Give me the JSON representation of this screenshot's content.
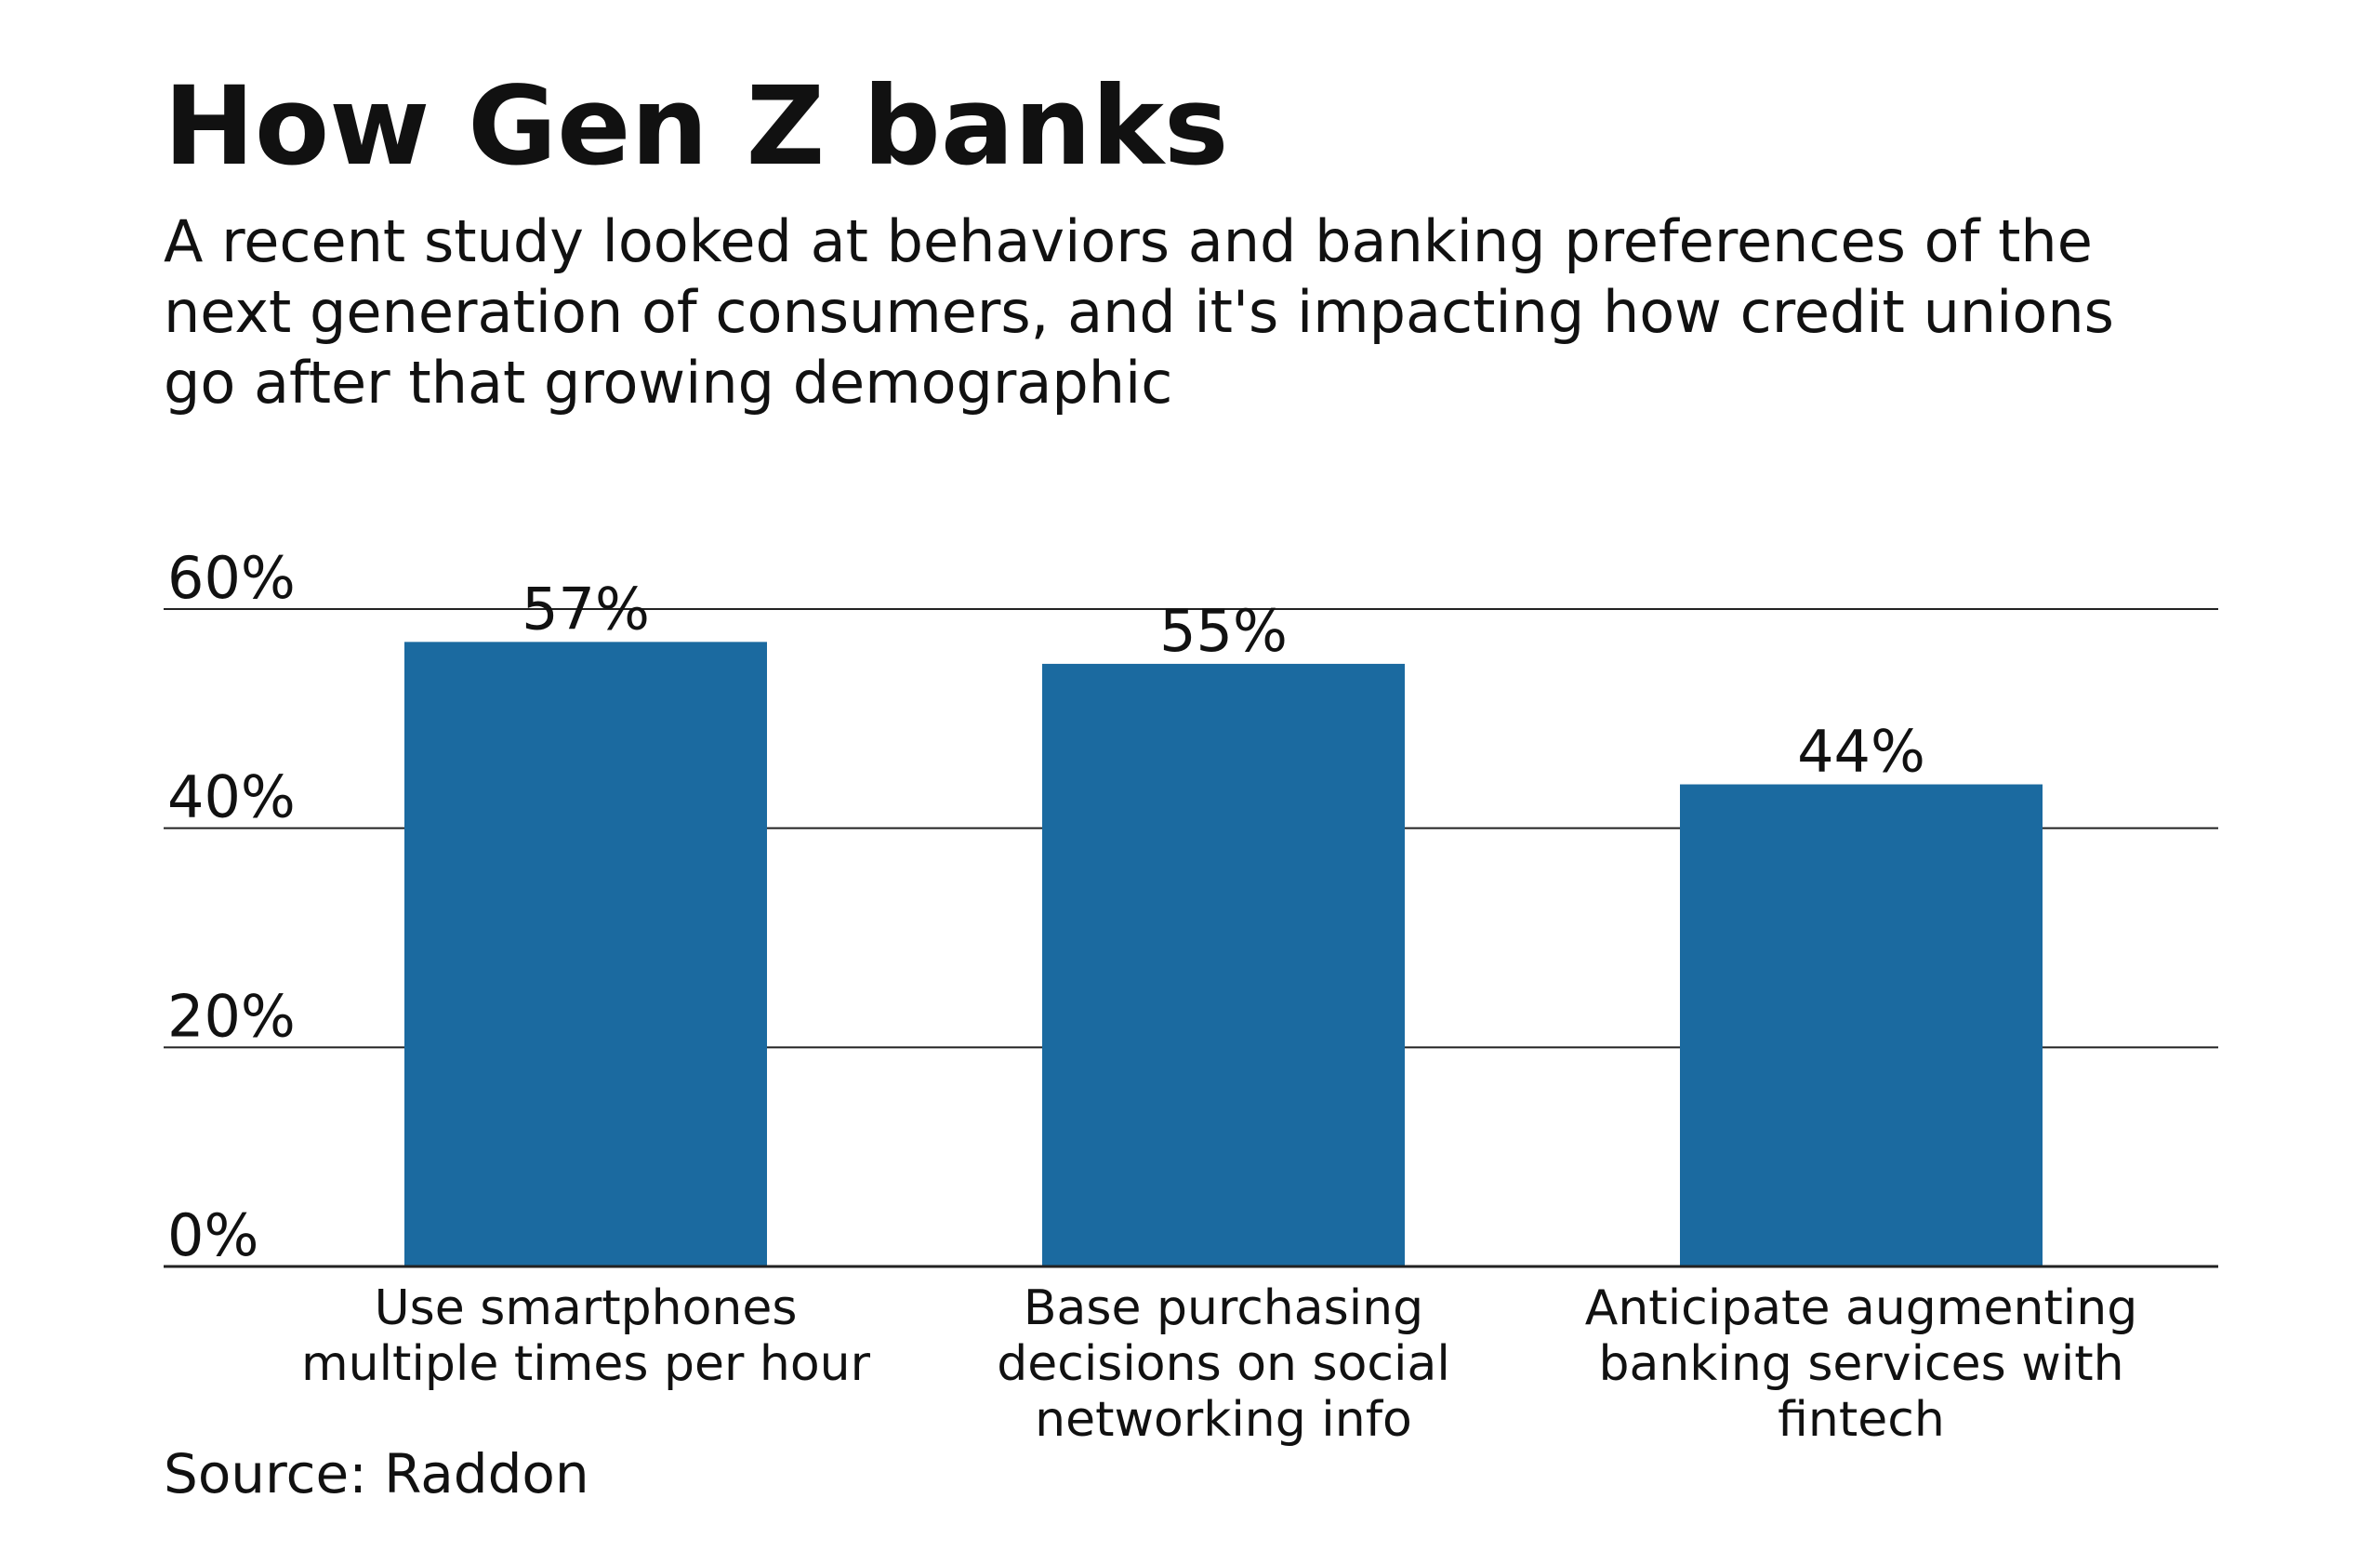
{
  "title": "How Gen Z banks",
  "subtitle": "A recent study looked at behaviors and banking preferences of the next generation of consumers, and it's impacting how credit unions go after that growing demographic",
  "source": "Source: Raddon",
  "colors": {
    "bar": "#1b6aa0",
    "grid": "#222222",
    "text": "#111111"
  },
  "chart_data": {
    "type": "bar",
    "title": "How Gen Z banks",
    "categories": [
      [
        "Use smartphones",
        "multiple times per hour"
      ],
      [
        "Base purchasing",
        "decisions on social",
        "networking info"
      ],
      [
        "Anticipate augmenting",
        "banking services with",
        "fintech"
      ]
    ],
    "values": [
      57,
      55,
      44
    ],
    "value_labels": [
      "57%",
      "55%",
      "44%"
    ],
    "ylim": [
      0,
      60
    ],
    "yticks": [
      0,
      20,
      40,
      60
    ],
    "ytick_labels": [
      "0%",
      "20%",
      "40%",
      "60%"
    ],
    "grid": true,
    "xlabel": "",
    "ylabel": ""
  }
}
